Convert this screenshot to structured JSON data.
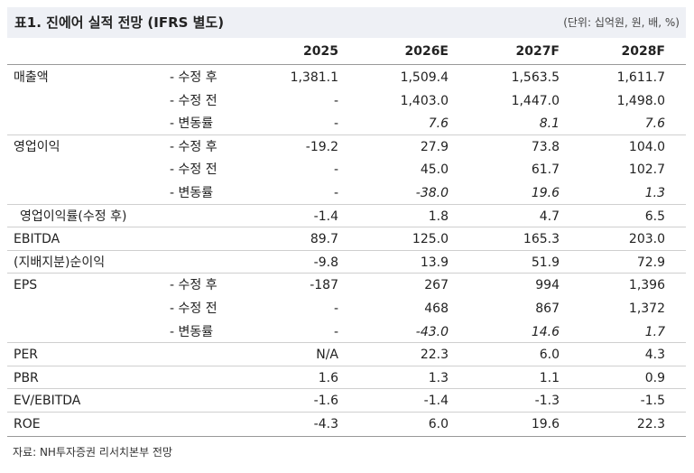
{
  "header": {
    "title": "표1. 진에어 실적 전망 (IFRS 별도)",
    "unit": "(단위: 십억원, 원, 배, %)"
  },
  "table": {
    "columns": [
      "2025",
      "2026E",
      "2027F",
      "2028F"
    ],
    "groups": [
      {
        "label": "매출액",
        "rows": [
          {
            "sub": "- 수정 후",
            "cells": [
              "1,381.1",
              "1,509.4",
              "1,563.5",
              "1,611.7"
            ]
          },
          {
            "sub": "- 수정 전",
            "cells": [
              "-",
              "1,403.0",
              "1,447.0",
              "1,498.0"
            ]
          },
          {
            "sub": "- 변동률",
            "cells": [
              "-",
              "7.6",
              "8.1",
              "7.6"
            ]
          }
        ]
      },
      {
        "label": "영업이익",
        "rows": [
          {
            "sub": "- 수정 후",
            "cells": [
              "-19.2",
              "27.9",
              "73.8",
              "104.0"
            ]
          },
          {
            "sub": "- 수정 전",
            "cells": [
              "-",
              "45.0",
              "61.7",
              "102.7"
            ]
          },
          {
            "sub": "- 변동률",
            "cells": [
              "-",
              "-38.0",
              "19.6",
              "1.3"
            ]
          }
        ]
      },
      {
        "label": "영업이익률(수정 후)",
        "rows": [
          {
            "cells": [
              "-1.4",
              "1.8",
              "4.7",
              "6.5"
            ]
          }
        ]
      },
      {
        "label": "EBITDA",
        "rows": [
          {
            "cells": [
              "89.7",
              "125.0",
              "165.3",
              "203.0"
            ]
          }
        ]
      },
      {
        "label": "(지배지분)순이익",
        "rows": [
          {
            "cells": [
              "-9.8",
              "13.9",
              "51.9",
              "72.9"
            ]
          }
        ]
      },
      {
        "label": "EPS",
        "rows": [
          {
            "sub": "- 수정 후",
            "cells": [
              "-187",
              "267",
              "994",
              "1,396"
            ]
          },
          {
            "sub": "- 수정 전",
            "cells": [
              "-",
              "468",
              "867",
              "1,372"
            ]
          },
          {
            "sub": "- 변동률",
            "cells": [
              "-",
              "-43.0",
              "14.6",
              "1.7"
            ]
          }
        ]
      },
      {
        "label": "PER",
        "rows": [
          {
            "cells": [
              "N/A",
              "22.3",
              "6.0",
              "4.3"
            ]
          }
        ]
      },
      {
        "label": "PBR",
        "rows": [
          {
            "cells": [
              "1.6",
              "1.3",
              "1.1",
              "0.9"
            ]
          }
        ]
      },
      {
        "label": "EV/EBITDA",
        "rows": [
          {
            "cells": [
              "-1.6",
              "-1.4",
              "-1.3",
              "-1.5"
            ]
          }
        ]
      },
      {
        "label": "ROE",
        "rows": [
          {
            "cells": [
              "-4.3",
              "6.0",
              "19.6",
              "22.3"
            ]
          }
        ]
      }
    ]
  },
  "source": "자료: NH투자증권 리서치본부 전망"
}
